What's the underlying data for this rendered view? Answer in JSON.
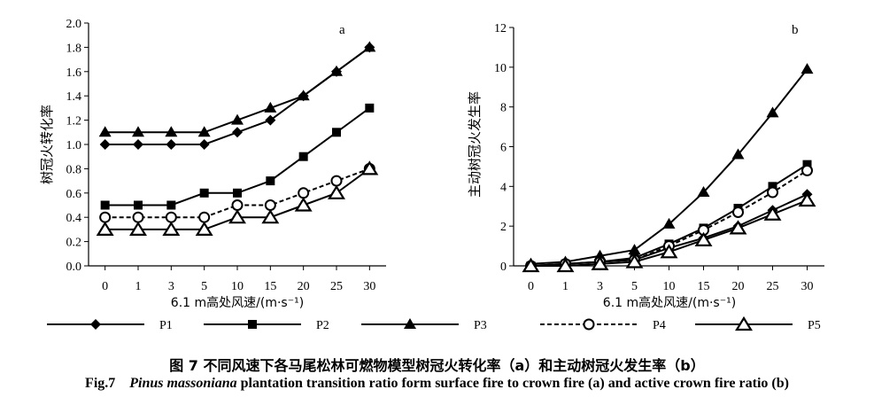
{
  "chart_data": [
    {
      "panel_label": "a",
      "type": "line",
      "ylabel": "树冠火转化率",
      "xlabel": "6.1 m高处风速/(m·s⁻¹)",
      "categories": [
        "0",
        "1",
        "3",
        "5",
        "10",
        "15",
        "20",
        "25",
        "30"
      ],
      "ylim": [
        0,
        2.0
      ],
      "yticks": [
        "0.0",
        "0.2",
        "0.4",
        "0.6",
        "0.8",
        "1.0",
        "1.2",
        "1.4",
        "1.6",
        "1.8",
        "2.0"
      ],
      "grid": false,
      "series": [
        {
          "name": "P1",
          "values": [
            1.0,
            1.0,
            1.0,
            1.0,
            1.1,
            1.2,
            1.4,
            1.6,
            1.8
          ]
        },
        {
          "name": "P2",
          "values": [
            0.5,
            0.5,
            0.5,
            0.6,
            0.6,
            0.7,
            0.9,
            1.1,
            1.3
          ]
        },
        {
          "name": "P3",
          "values": [
            1.1,
            1.1,
            1.1,
            1.1,
            1.2,
            1.3,
            1.4,
            1.6,
            1.8
          ]
        },
        {
          "name": "P4",
          "values": [
            0.4,
            0.4,
            0.4,
            0.4,
            0.5,
            0.5,
            0.6,
            0.7,
            0.8
          ]
        },
        {
          "name": "P5",
          "values": [
            0.3,
            0.3,
            0.3,
            0.3,
            0.4,
            0.4,
            0.5,
            0.6,
            0.8
          ]
        }
      ]
    },
    {
      "panel_label": "b",
      "type": "line",
      "ylabel": "主动树冠火发生率",
      "xlabel": "6.1 m高处风速/(m·s⁻¹)",
      "categories": [
        "0",
        "1",
        "3",
        "5",
        "10",
        "15",
        "20",
        "25",
        "30"
      ],
      "ylim": [
        0,
        12
      ],
      "yticks": [
        "0",
        "2",
        "4",
        "6",
        "8",
        "10",
        "12"
      ],
      "grid": false,
      "series": [
        {
          "name": "P1",
          "values": [
            0.0,
            0.1,
            0.2,
            0.3,
            0.9,
            1.4,
            2.0,
            2.8,
            3.6
          ]
        },
        {
          "name": "P2",
          "values": [
            0.0,
            0.1,
            0.2,
            0.4,
            1.1,
            1.9,
            2.9,
            4.0,
            5.1
          ]
        },
        {
          "name": "P3",
          "values": [
            0.1,
            0.2,
            0.5,
            0.8,
            2.1,
            3.7,
            5.6,
            7.7,
            9.9
          ]
        },
        {
          "name": "P4",
          "values": [
            0.0,
            0.1,
            0.2,
            0.3,
            1.0,
            1.8,
            2.7,
            3.7,
            4.8
          ]
        },
        {
          "name": "P5",
          "values": [
            0.0,
            0.0,
            0.1,
            0.2,
            0.7,
            1.3,
            1.9,
            2.6,
            3.3
          ]
        }
      ]
    }
  ],
  "legend": [
    {
      "name": "P1",
      "marker": "diamond",
      "dash": false
    },
    {
      "name": "P2",
      "marker": "square",
      "dash": false
    },
    {
      "name": "P3",
      "marker": "triangle",
      "dash": false
    },
    {
      "name": "P4",
      "marker": "open-circle",
      "dash": true
    },
    {
      "name": "P5",
      "marker": "open-triangle",
      "dash": false
    }
  ],
  "caption": {
    "cn": "图 7    不同风速下各马尾松林可燃物模型树冠火转化率（a）和主动树冠火发生率（b）",
    "en_prefix": "Fig.7",
    "en_species": "Pinus massoniana",
    "en_rest": "plantation transition ratio form surface fire to crown fire (a) and active crown fire ratio (b)"
  },
  "colors": {
    "line": "#000000",
    "background": "#ffffff"
  }
}
